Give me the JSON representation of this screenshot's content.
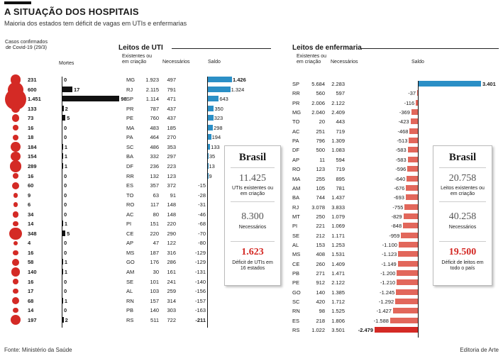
{
  "title": "A SITUAÇÃO DOS HOSPITAIS",
  "subtitle": "Maioria dos estados tem déficit de vagas em UTIs e enfermarias",
  "headers": {
    "casos": "Casos confirmados de Covid-19 (29/3)",
    "mortes": "Mortes",
    "uti_section": "Leitos de UTI",
    "existentes": "Existentes ou em criação",
    "necessarios": "Necessários",
    "saldo": "Saldo",
    "enf_section": "Leitos de enfermaria"
  },
  "uti_box": {
    "title": "Brasil",
    "v1": "11.425",
    "l1": "UTIs existentes ou em criação",
    "v2": "8.300",
    "l2": "Necessários",
    "v3": "1.623",
    "l3": "Déficit de UTIs em 16 estados"
  },
  "enf_box": {
    "title": "Brasil",
    "v1": "20.758",
    "l1": "Leitos existentes ou em criação",
    "v2": "40.258",
    "l2": "Necessários",
    "v3": "19.500",
    "l3": "Déficit de leitos em todo o país"
  },
  "footer": {
    "source": "Fonte: Ministério da Saúde",
    "credit": "Editoria de Arte"
  },
  "colors": {
    "red": "#d42a25",
    "blue": "#2b8fc6",
    "lightred": "#e2675b"
  },
  "chart_data": [
    {
      "type": "bar",
      "title": "Leitos de UTI",
      "states": [
        "MG",
        "RJ",
        "SP",
        "PR",
        "PE",
        "MA",
        "PA",
        "SC",
        "BA",
        "DF",
        "RR",
        "ES",
        "TO",
        "RO",
        "AC",
        "PI",
        "CE",
        "AP",
        "MS",
        "GO",
        "AM",
        "SE",
        "AL",
        "RN",
        "PB",
        "RS"
      ],
      "casos": [
        231,
        600,
        1451,
        133,
        73,
        16,
        18,
        184,
        154,
        289,
        16,
        60,
        9,
        6,
        34,
        14,
        348,
        4,
        16,
        58,
        140,
        16,
        17,
        68,
        14,
        197
      ],
      "casos_labels": [
        "231",
        "600",
        "1.451",
        "133",
        "73",
        "16",
        "18",
        "184",
        "154",
        "289",
        "16",
        "60",
        "9",
        "6",
        "34",
        "14",
        "348",
        "4",
        "16",
        "58",
        "140",
        "16",
        "17",
        "68",
        "14",
        "197"
      ],
      "mortes": [
        0,
        17,
        98,
        2,
        5,
        0,
        0,
        1,
        1,
        1,
        0,
        0,
        0,
        0,
        0,
        1,
        5,
        0,
        0,
        1,
        1,
        0,
        0,
        1,
        0,
        2
      ],
      "existentes": [
        "1.923",
        "2.115",
        "1.114",
        "787",
        "760",
        "483",
        "464",
        "486",
        "332",
        "236",
        "132",
        "357",
        "63",
        "117",
        "80",
        "151",
        "220",
        "47",
        "187",
        "176",
        "30",
        "101",
        "103",
        "157",
        "140",
        "511"
      ],
      "necessarios": [
        "497",
        "791",
        "471",
        "437",
        "437",
        "185",
        "270",
        "353",
        "297",
        "223",
        "123",
        "372",
        "91",
        "148",
        "148",
        "220",
        "290",
        "122",
        "316",
        "286",
        "161",
        "241",
        "259",
        "314",
        "303",
        "722"
      ],
      "saldo": [
        1426,
        1324,
        643,
        350,
        323,
        298,
        194,
        133,
        35,
        13,
        9,
        -15,
        -28,
        -31,
        -46,
        -68,
        -70,
        -80,
        -129,
        -129,
        -131,
        -140,
        -156,
        -157,
        -163,
        -211
      ],
      "saldo_labels": [
        "1.426",
        "1.324",
        "643",
        "350",
        "323",
        "298",
        "194",
        "133",
        "35",
        "13",
        "9",
        "-15",
        "-28",
        "-31",
        "-46",
        "-68",
        "-70",
        "-80",
        "-129",
        "-129",
        "-131",
        "-140",
        "-156",
        "-157",
        "-163",
        "-211"
      ]
    },
    {
      "type": "bar",
      "title": "Leitos de enfermaria",
      "states": [
        "SP",
        "RR",
        "PR",
        "MG",
        "TO",
        "AC",
        "PA",
        "DF",
        "AP",
        "RO",
        "MA",
        "AM",
        "BA",
        "RJ",
        "MT",
        "PI",
        "SE",
        "AL",
        "MS",
        "CE",
        "PB",
        "PE",
        "GO",
        "SC",
        "RN",
        "ES",
        "RS"
      ],
      "existentes": [
        "5.684",
        "560",
        "2.006",
        "2.040",
        "20",
        "251",
        "796",
        "500",
        "11",
        "123",
        "255",
        "105",
        "744",
        "3.078",
        "250",
        "221",
        "212",
        "153",
        "408",
        "260",
        "271",
        "912",
        "140",
        "420",
        "98",
        "218",
        "1.022"
      ],
      "necessarios": [
        "2.283",
        "597",
        "2.122",
        "2.409",
        "443",
        "719",
        "1.309",
        "1.083",
        "594",
        "719",
        "895",
        "781",
        "1.437",
        "3.833",
        "1.079",
        "1.069",
        "1.171",
        "1.253",
        "1.531",
        "1.409",
        "1.471",
        "2.122",
        "1.385",
        "1.712",
        "1.525",
        "1.806",
        "3.501"
      ],
      "saldo": [
        3401,
        -37,
        -116,
        -369,
        -423,
        -468,
        -513,
        -583,
        -583,
        -596,
        -640,
        -676,
        -693,
        -755,
        -829,
        -848,
        -959,
        -1100,
        -1123,
        -1149,
        -1200,
        -1210,
        -1245,
        -1292,
        -1427,
        -1588,
        -2479
      ],
      "saldo_labels": [
        "3.401",
        "-37",
        "-116",
        "-369",
        "-423",
        "-468",
        "-513",
        "-583",
        "-583",
        "-596",
        "-640",
        "-676",
        "-693",
        "-755",
        "-829",
        "-848",
        "-959",
        "-1.100",
        "-1.123",
        "-1.149",
        "-1.200",
        "-1.210",
        "-1.245",
        "-1.292",
        "-1.427",
        "-1.588",
        "-2.479"
      ]
    }
  ]
}
